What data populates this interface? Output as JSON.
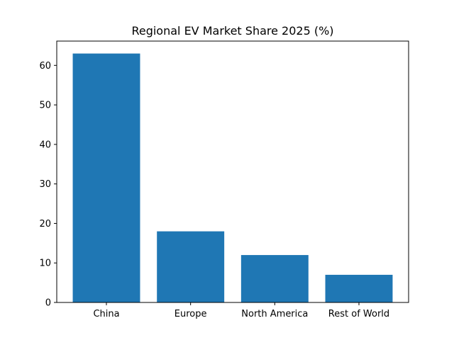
{
  "chart_data": {
    "type": "bar",
    "title": "Regional EV Market Share 2025 (%)",
    "xlabel": "",
    "ylabel": "",
    "categories": [
      "China",
      "Europe",
      "North America",
      "Rest of World"
    ],
    "values": [
      63,
      18,
      12,
      7
    ],
    "ylim": [
      0,
      66.15
    ],
    "yticks": [
      0,
      10,
      20,
      30,
      40,
      50,
      60
    ],
    "grid": false,
    "legend": "none",
    "bar_color": "#1f77b4"
  }
}
